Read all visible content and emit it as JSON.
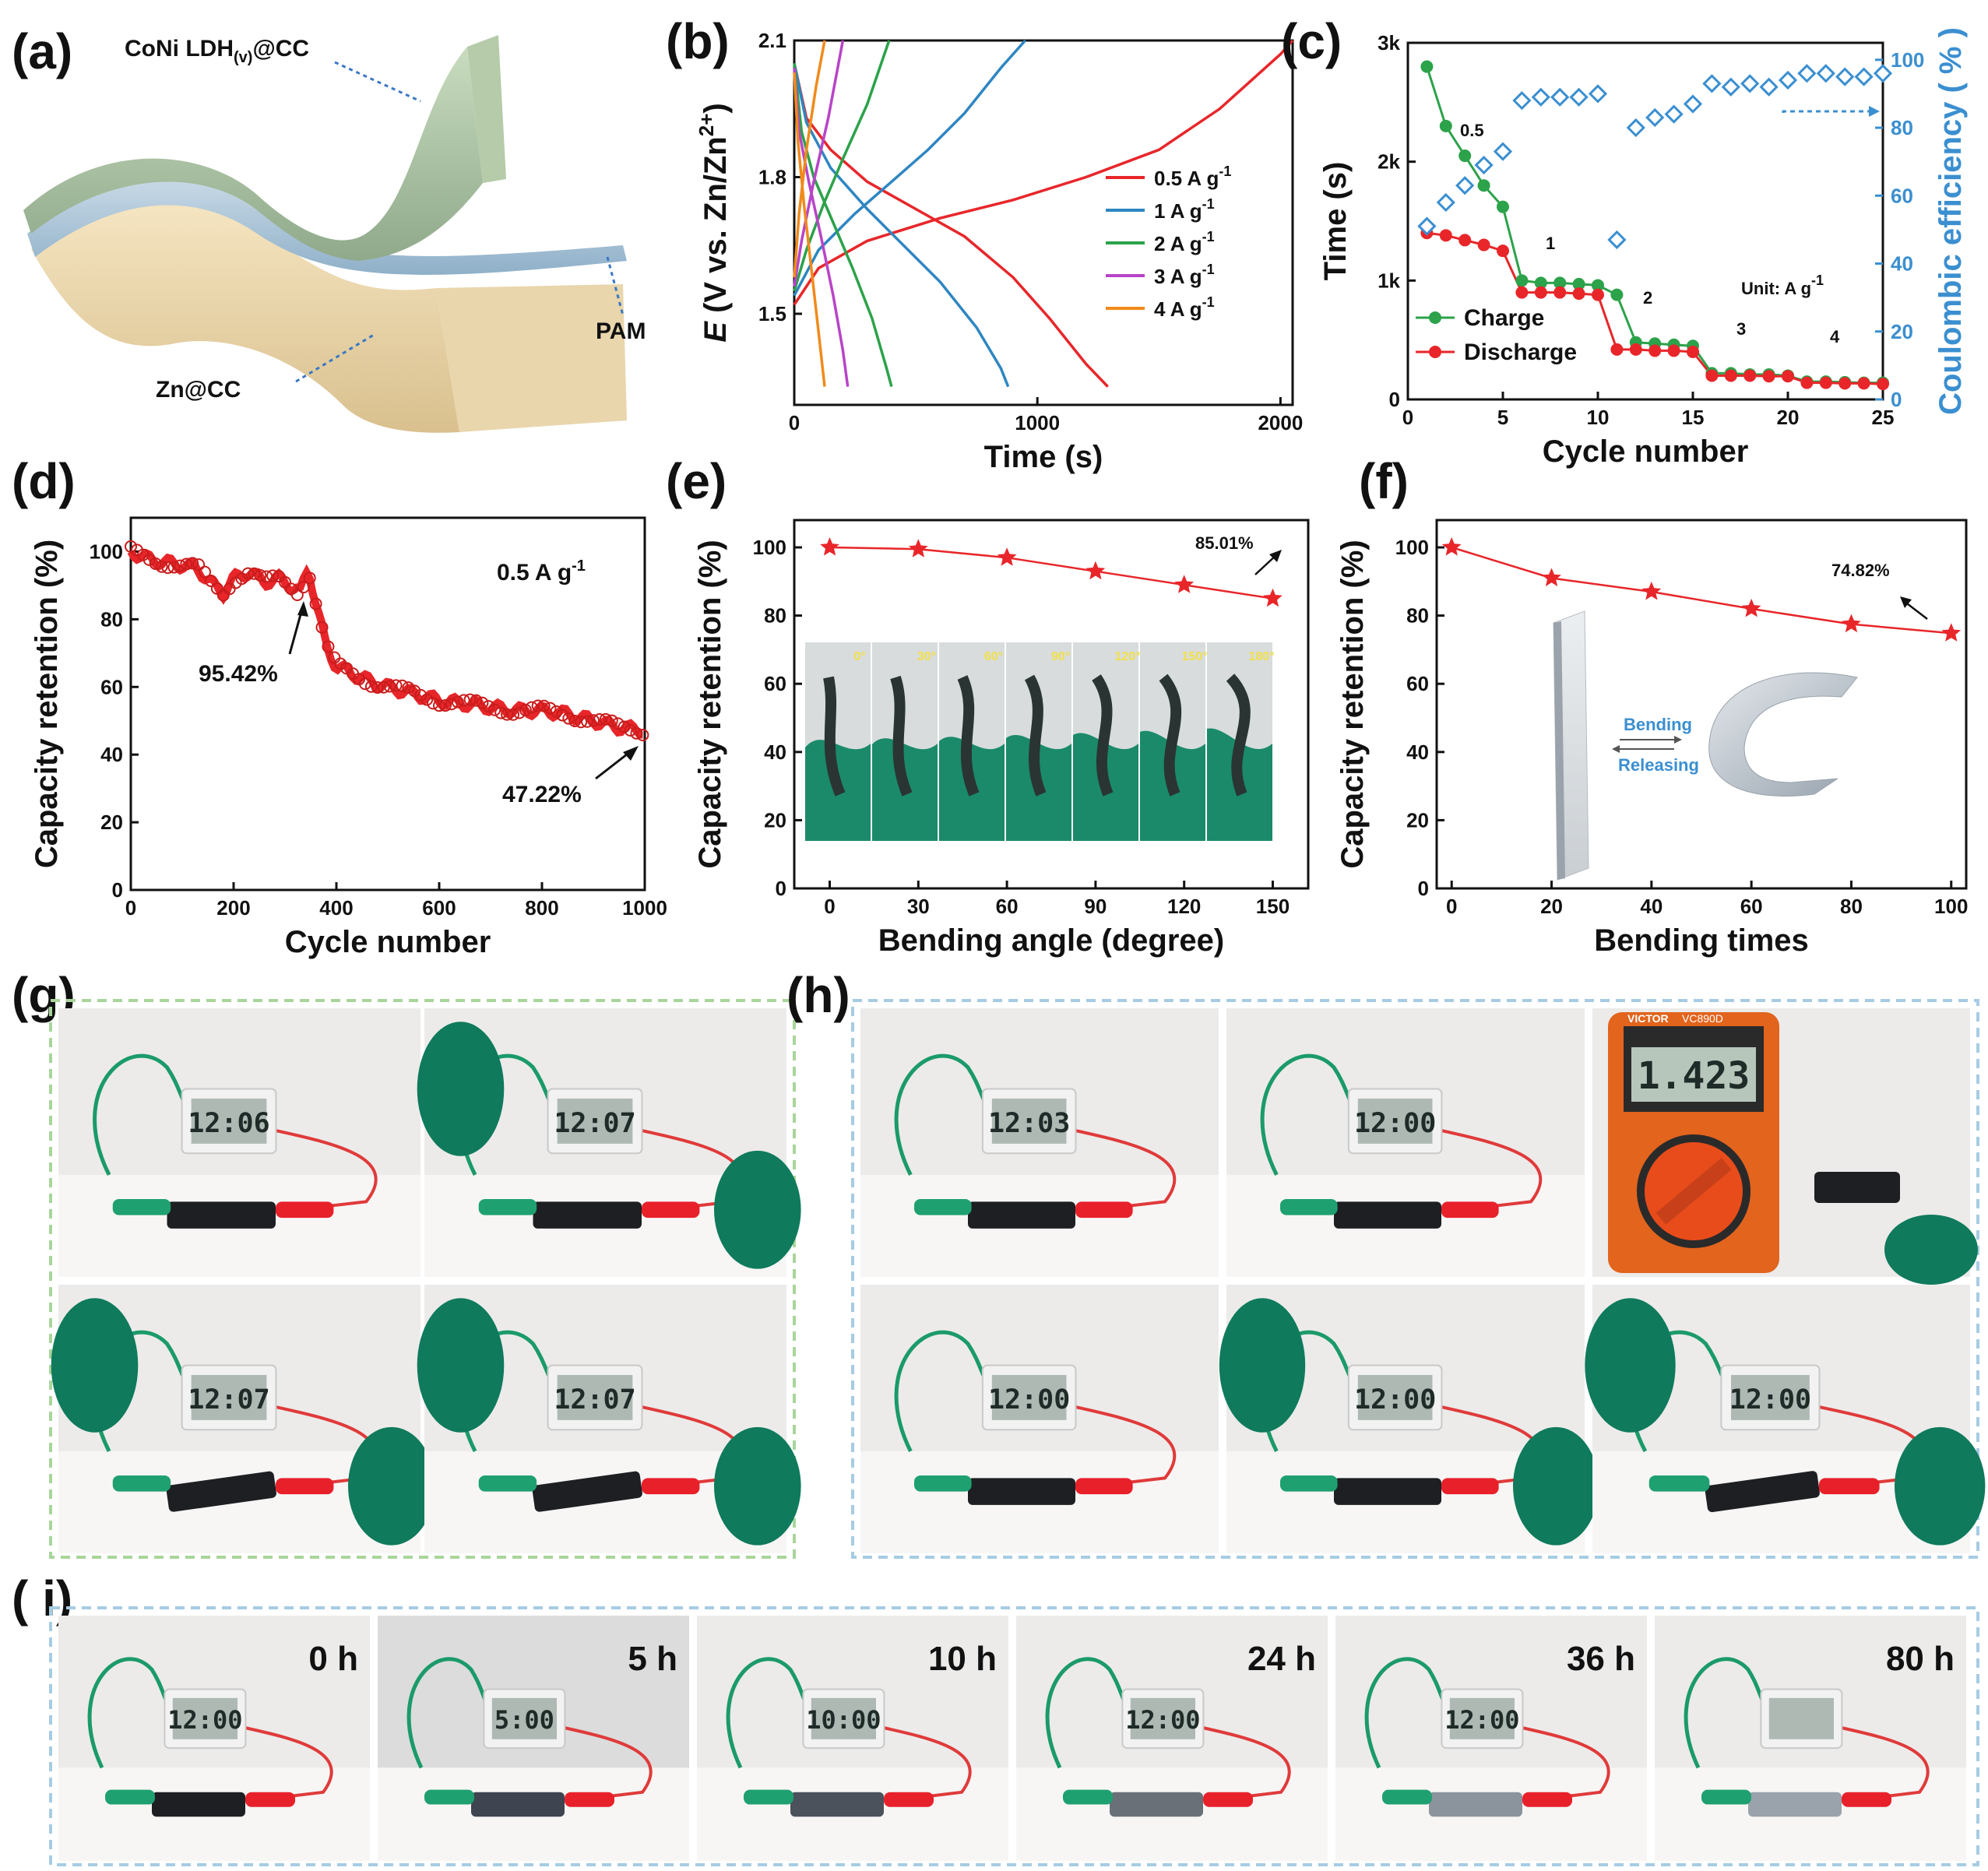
{
  "panels": {
    "a": {
      "label": "(a)",
      "cathode": "CoNi LDH",
      "cathode_sub": "(v)",
      "cathode_suffix": "@CC",
      "electrolyte": "PAM",
      "anode": "Zn@CC"
    },
    "b": {
      "label": "(b)"
    },
    "c": {
      "label": "(c)",
      "unit": "Unit: A g",
      "unit_sup": "-1",
      "rate_labels": [
        "0.5",
        "1",
        "2",
        "3",
        "4"
      ]
    },
    "d": {
      "label": "(d)",
      "rate": "0.5 A g",
      "rate_sup": "-1",
      "ann1": "95.42%",
      "ann2": "47.22%"
    },
    "e": {
      "label": "(e)",
      "ann1": "85.01%",
      "angles_shown": [
        "0°",
        "30°",
        "60°",
        "90°",
        "120°",
        "150°",
        "180°"
      ]
    },
    "f": {
      "label": "(f)",
      "ann1": "74.82%",
      "bend_label": "Bending",
      "release_label": "Releasing"
    },
    "g": {
      "label": "(g)",
      "clock_times": [
        "12:06",
        "12:07",
        "12:07",
        "12:07"
      ]
    },
    "h": {
      "label": "(h)",
      "clock_times": [
        "12:03",
        "12:00",
        "12:00",
        "12:00",
        "12:00"
      ],
      "meter_reading": "1.423",
      "meter_brand": "VICTOR",
      "meter_model": "VC890D"
    },
    "i": {
      "label": "( i)",
      "times": [
        "0 h",
        "5 h",
        "10 h",
        "24 h",
        "36 h",
        "80 h"
      ],
      "clock_times": [
        "12:00",
        "5:00",
        "10:00",
        "12:00",
        "12:00",
        ""
      ]
    }
  },
  "chart_data": [
    {
      "id": "b",
      "type": "line",
      "xlabel": "Time (s)",
      "ylabel_main": "E",
      "ylabel_rest": " (V vs. Zn/Zn",
      "ylabel_sup": "2+",
      "ylabel_end": ")",
      "xlim": [
        0,
        2050
      ],
      "ylim": [
        1.3,
        2.1
      ],
      "xticks": [
        0,
        1000,
        2000
      ],
      "xtick_labels": [
        "0",
        "1000",
        "2000"
      ],
      "yticks": [
        1.5,
        1.8,
        2.1
      ],
      "ytick_labels": [
        "1.5",
        "1.8",
        "2.1"
      ],
      "legend": [
        "0.5 A g",
        "1 A g",
        "2 A g",
        "3 A g",
        "4 A g"
      ],
      "legend_sup": "-1",
      "series": [
        {
          "name": "0.5 A g-1",
          "color": "#e8262a",
          "charge": [
            [
              0,
              1.52
            ],
            [
              100,
              1.6
            ],
            [
              300,
              1.66
            ],
            [
              600,
              1.71
            ],
            [
              900,
              1.75
            ],
            [
              1200,
              1.8
            ],
            [
              1500,
              1.86
            ],
            [
              1750,
              1.95
            ],
            [
              2000,
              2.07
            ],
            [
              2050,
              2.1
            ]
          ],
          "discharge": [
            [
              0,
              2.05
            ],
            [
              50,
              1.93
            ],
            [
              150,
              1.86
            ],
            [
              300,
              1.79
            ],
            [
              500,
              1.73
            ],
            [
              700,
              1.67
            ],
            [
              900,
              1.58
            ],
            [
              1050,
              1.49
            ],
            [
              1200,
              1.39
            ],
            [
              1290,
              1.34
            ]
          ]
        },
        {
          "name": "1 A g-1",
          "color": "#2e86c1",
          "charge": [
            [
              0,
              1.54
            ],
            [
              100,
              1.64
            ],
            [
              250,
              1.72
            ],
            [
              400,
              1.79
            ],
            [
              550,
              1.86
            ],
            [
              700,
              1.94
            ],
            [
              850,
              2.04
            ],
            [
              950,
              2.1
            ]
          ],
          "discharge": [
            [
              0,
              2.05
            ],
            [
              50,
              1.92
            ],
            [
              150,
              1.82
            ],
            [
              300,
              1.73
            ],
            [
              450,
              1.65
            ],
            [
              600,
              1.57
            ],
            [
              750,
              1.47
            ],
            [
              850,
              1.38
            ],
            [
              880,
              1.34
            ]
          ]
        },
        {
          "name": "2 A g-1",
          "color": "#2ca24a",
          "charge": [
            [
              0,
              1.55
            ],
            [
              50,
              1.64
            ],
            [
              120,
              1.74
            ],
            [
              200,
              1.84
            ],
            [
              300,
              1.96
            ],
            [
              390,
              2.1
            ]
          ],
          "discharge": [
            [
              0,
              2.05
            ],
            [
              30,
              1.9
            ],
            [
              80,
              1.8
            ],
            [
              160,
              1.7
            ],
            [
              240,
              1.6
            ],
            [
              320,
              1.49
            ],
            [
              380,
              1.38
            ],
            [
              400,
              1.34
            ]
          ]
        },
        {
          "name": "3 A g-1",
          "color": "#b844c8",
          "charge": [
            [
              0,
              1.56
            ],
            [
              30,
              1.66
            ],
            [
              80,
              1.79
            ],
            [
              140,
              1.93
            ],
            [
              200,
              2.1
            ]
          ],
          "discharge": [
            [
              0,
              2.04
            ],
            [
              20,
              1.9
            ],
            [
              60,
              1.79
            ],
            [
              110,
              1.67
            ],
            [
              160,
              1.54
            ],
            [
              200,
              1.42
            ],
            [
              220,
              1.34
            ]
          ]
        },
        {
          "name": "4 A g-1",
          "color": "#f08b1c",
          "charge": [
            [
              0,
              1.58
            ],
            [
              20,
              1.72
            ],
            [
              50,
              1.86
            ],
            [
              90,
              2.0
            ],
            [
              125,
              2.1
            ]
          ],
          "discharge": [
            [
              0,
              2.03
            ],
            [
              15,
              1.88
            ],
            [
              40,
              1.74
            ],
            [
              70,
              1.6
            ],
            [
              100,
              1.46
            ],
            [
              125,
              1.34
            ]
          ]
        }
      ]
    },
    {
      "id": "c",
      "type": "line",
      "xlabel": "Cycle number",
      "ylabel": "Time (s)",
      "ylabel2": "Coulombic efficiency ( % )",
      "xlim": [
        0,
        25
      ],
      "ylim": [
        0,
        3000
      ],
      "y2lim": [
        0,
        105
      ],
      "xticks": [
        0,
        5,
        10,
        15,
        20,
        25
      ],
      "xtick_labels": [
        "0",
        "5",
        "10",
        "15",
        "20",
        "25"
      ],
      "yticks": [
        0,
        1000,
        2000,
        3000
      ],
      "ytick_labels": [
        "0",
        "1k",
        "2k",
        "3k"
      ],
      "y2ticks": [
        0,
        20,
        40,
        60,
        80,
        100
      ],
      "y2tick_labels": [
        "0",
        "20",
        "40",
        "60",
        "80",
        "100"
      ],
      "legend": [
        "Charge",
        "Discharge"
      ],
      "series": [
        {
          "name": "Charge",
          "color": "#2ca24a",
          "x": [
            1,
            2,
            3,
            4,
            5,
            6,
            7,
            8,
            9,
            10,
            11,
            12,
            13,
            14,
            15,
            16,
            17,
            18,
            19,
            20,
            21,
            22,
            23,
            24,
            25
          ],
          "values": [
            2800,
            2300,
            2050,
            1800,
            1620,
            1000,
            980,
            980,
            970,
            960,
            880,
            480,
            470,
            460,
            450,
            220,
            220,
            210,
            210,
            200,
            150,
            150,
            145,
            140,
            140
          ]
        },
        {
          "name": "Discharge",
          "color": "#e8262a",
          "x": [
            1,
            2,
            3,
            4,
            5,
            6,
            7,
            8,
            9,
            10,
            11,
            12,
            13,
            14,
            15,
            16,
            17,
            18,
            19,
            20,
            21,
            22,
            23,
            24,
            25
          ],
          "values": [
            1400,
            1380,
            1340,
            1300,
            1250,
            900,
            900,
            900,
            890,
            880,
            420,
            420,
            410,
            410,
            400,
            200,
            200,
            200,
            195,
            195,
            140,
            140,
            135,
            135,
            130
          ]
        },
        {
          "name": "Coulombic efficiency",
          "color": "#3b8fd0",
          "axis": "right",
          "x": [
            1,
            2,
            3,
            4,
            5,
            6,
            7,
            8,
            9,
            10,
            11,
            12,
            13,
            14,
            15,
            16,
            17,
            18,
            19,
            20,
            21,
            22,
            23,
            24,
            25
          ],
          "values": [
            51,
            58,
            63,
            69,
            73,
            88,
            89,
            89,
            89,
            90,
            47,
            80,
            83,
            84,
            87,
            93,
            92,
            93,
            92,
            94,
            96,
            96,
            95,
            95,
            96
          ]
        }
      ]
    },
    {
      "id": "d",
      "type": "line",
      "xlabel": "Cycle number",
      "ylabel": "Capacity retention (%)",
      "xlim": [
        0,
        1000
      ],
      "ylim": [
        0,
        110
      ],
      "xticks": [
        0,
        200,
        400,
        600,
        800,
        1000
      ],
      "xtick_labels": [
        "0",
        "200",
        "400",
        "600",
        "800",
        "1000"
      ],
      "yticks": [
        0,
        20,
        40,
        60,
        80,
        100
      ],
      "ytick_labels": [
        "0",
        "20",
        "40",
        "60",
        "80",
        "100"
      ],
      "series": [
        {
          "name": "retention",
          "color": "#e8262a",
          "x": [
            0,
            30,
            60,
            100,
            130,
            160,
            180,
            200,
            230,
            260,
            290,
            310,
            330,
            345,
            360,
            380,
            400,
            430,
            460,
            500,
            550,
            600,
            650,
            700,
            750,
            800,
            850,
            900,
            950,
            1000
          ],
          "values": [
            100,
            98,
            97,
            96,
            95,
            90,
            88,
            92,
            94,
            91,
            92,
            90,
            88,
            95.42,
            85,
            72,
            66,
            64,
            62,
            60,
            58,
            56,
            55,
            54,
            53,
            53,
            52,
            50,
            48,
            47.22
          ]
        }
      ]
    },
    {
      "id": "e",
      "type": "line",
      "xlabel": "Bending angle (degree)",
      "ylabel": "Capacity  retention (%)",
      "xlim": [
        -12,
        162
      ],
      "ylim": [
        0,
        108
      ],
      "xticks": [
        0,
        30,
        60,
        90,
        120,
        150
      ],
      "xtick_labels": [
        "0",
        "30",
        "60",
        "90",
        "120",
        "150"
      ],
      "yticks": [
        0,
        20,
        40,
        60,
        80,
        100
      ],
      "ytick_labels": [
        "0",
        "20",
        "40",
        "60",
        "80",
        "100"
      ],
      "series": [
        {
          "name": "retention",
          "color": "#e8262a",
          "x": [
            0,
            30,
            60,
            90,
            120,
            150
          ],
          "values": [
            100,
            99.5,
            97,
            93,
            89,
            85.01
          ]
        }
      ]
    },
    {
      "id": "f",
      "type": "line",
      "xlabel": "Bending times",
      "ylabel": "Capacity  retention (%)",
      "xlim": [
        -3,
        103
      ],
      "ylim": [
        0,
        108
      ],
      "xticks": [
        0,
        20,
        40,
        60,
        80,
        100
      ],
      "xtick_labels": [
        "0",
        "20",
        "40",
        "60",
        "80",
        "100"
      ],
      "yticks": [
        0,
        20,
        40,
        60,
        80,
        100
      ],
      "ytick_labels": [
        "0",
        "20",
        "40",
        "60",
        "80",
        "100"
      ],
      "series": [
        {
          "name": "retention",
          "color": "#e8262a",
          "x": [
            0,
            20,
            40,
            60,
            80,
            100
          ],
          "values": [
            100,
            91,
            87,
            82,
            77.5,
            74.82
          ]
        }
      ]
    }
  ]
}
